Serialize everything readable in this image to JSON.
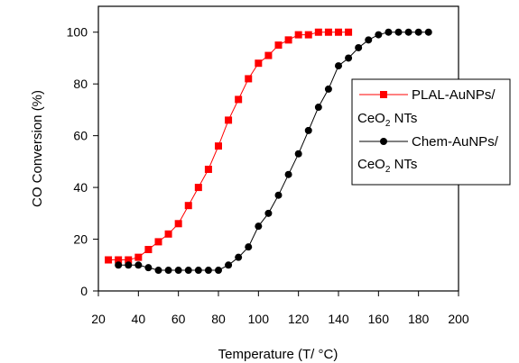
{
  "chart_data": {
    "type": "line",
    "title": "",
    "xlabel": "Temperature (T/ °C)",
    "ylabel": "CO Conversion (%)",
    "xlim": [
      20,
      200
    ],
    "ylim": [
      0,
      110
    ],
    "xticks": [
      20,
      40,
      60,
      80,
      100,
      120,
      140,
      160,
      180,
      200
    ],
    "yticks": [
      0,
      20,
      40,
      60,
      80,
      100
    ],
    "grid": false,
    "legend_position": "right",
    "series": [
      {
        "name": "PLAL-AuNPs/CeO2 NTs",
        "legend_line1": "PLAL-AuNPs/",
        "legend_line2_main": "CeO",
        "legend_line2_sub": "2",
        "legend_line2_tail": " NTs",
        "color": "#ff0000",
        "marker": "square",
        "x": [
          25,
          30,
          35,
          40,
          45,
          50,
          55,
          60,
          65,
          70,
          75,
          80,
          85,
          90,
          95,
          100,
          105,
          110,
          115,
          120,
          125,
          130,
          135,
          140,
          145
        ],
        "y": [
          12,
          12,
          12,
          13,
          16,
          19,
          22,
          26,
          33,
          40,
          47,
          56,
          66,
          74,
          82,
          88,
          91,
          95,
          97,
          99,
          99,
          100,
          100,
          100,
          100
        ]
      },
      {
        "name": "Chem-AuNPs/CeO2 NTs",
        "legend_line1": "Chem-AuNPs/",
        "legend_line2_main": "CeO",
        "legend_line2_sub": "2",
        "legend_line2_tail": " NTs",
        "color": "#000000",
        "marker": "circle",
        "x": [
          30,
          35,
          40,
          45,
          50,
          55,
          60,
          65,
          70,
          75,
          80,
          85,
          90,
          95,
          100,
          105,
          110,
          115,
          120,
          125,
          130,
          135,
          140,
          145,
          150,
          155,
          160,
          165,
          170,
          175,
          180,
          185
        ],
        "y": [
          10,
          10,
          10,
          9,
          8,
          8,
          8,
          8,
          8,
          8,
          8,
          10,
          13,
          17,
          25,
          30,
          37,
          45,
          53,
          62,
          71,
          78,
          87,
          90,
          94,
          97,
          99,
          100,
          100,
          100,
          100,
          100
        ]
      }
    ]
  }
}
